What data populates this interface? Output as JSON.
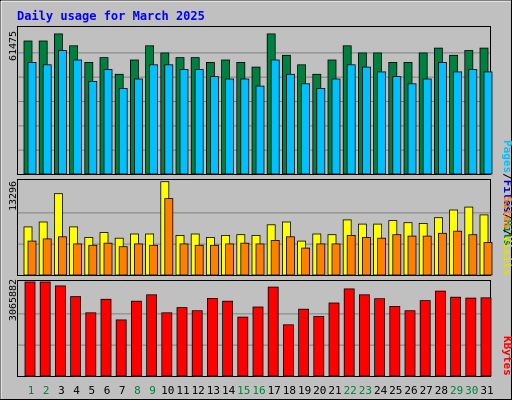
{
  "title": "Daily usage for March 2025",
  "colors": {
    "hits": "#008040",
    "files": "#00c0ff",
    "visits": "#ffff00",
    "sites": "#ff8000",
    "kbytes": "#ff0000",
    "panel_bg": "#c0c0c0",
    "title_text": "#0000ff",
    "weekend_day": "#008040",
    "weekday_day": "#000000"
  },
  "legend": {
    "pages": "Pages",
    "files": "Files",
    "hits": "Hits",
    "sites": "Sites",
    "visits": "Visits",
    "kbytes": "KBytes",
    "sep": "/"
  },
  "axis_max_labels": {
    "top": "61475",
    "middle": "13296",
    "bottom": "3065882"
  },
  "chart_data": {
    "type": "bar",
    "title": "Daily usage for March 2025",
    "categories": [
      "1",
      "2",
      "3",
      "4",
      "5",
      "6",
      "7",
      "8",
      "9",
      "10",
      "11",
      "12",
      "13",
      "14",
      "15",
      "16",
      "17",
      "18",
      "19",
      "20",
      "21",
      "22",
      "23",
      "24",
      "25",
      "26",
      "27",
      "28",
      "29",
      "30",
      "31"
    ],
    "weekend_days": [
      "1",
      "2",
      "8",
      "9",
      "15",
      "16",
      "22",
      "23",
      "29",
      "30"
    ],
    "panels": [
      {
        "name": "top",
        "ymax": 61475,
        "series": [
          {
            "name": "Hits",
            "values": [
              56000,
              56000,
              59000,
              54000,
              47000,
              49000,
              42000,
              48000,
              54000,
              51000,
              49000,
              49000,
              47000,
              48000,
              47000,
              45000,
              59000,
              50000,
              46000,
              42000,
              48000,
              54000,
              51000,
              51000,
              47000,
              47000,
              51000,
              53000,
              50000,
              52000,
              53000
            ]
          },
          {
            "name": "Files",
            "values": [
              47000,
              46000,
              52000,
              48000,
              39000,
              44000,
              36000,
              40000,
              46000,
              46000,
              44000,
              44000,
              41000,
              40000,
              40000,
              37000,
              48000,
              42000,
              38000,
              36000,
              40000,
              46000,
              45000,
              43000,
              41000,
              38000,
              40000,
              47000,
              43000,
              44000,
              43000
            ]
          },
          {
            "name": "Pages",
            "values": [
              47000,
              46000,
              52000,
              48000,
              39000,
              44000,
              36000,
              40000,
              46000,
              46000,
              44000,
              44000,
              41000,
              40000,
              40000,
              37000,
              48000,
              42000,
              38000,
              36000,
              40000,
              46000,
              45000,
              43000,
              41000,
              38000,
              40000,
              47000,
              43000,
              44000,
              43000
            ]
          }
        ]
      },
      {
        "name": "middle",
        "ymax": 13296,
        "series": [
          {
            "name": "Visits",
            "values": [
              6800,
              7500,
              11500,
              6800,
              5300,
              6000,
              5200,
              5800,
              5800,
              13200,
              5600,
              5800,
              5300,
              5600,
              5700,
              5600,
              7100,
              7500,
              4800,
              5800,
              5700,
              7800,
              7200,
              7200,
              7700,
              7400,
              7300,
              8100,
              9200,
              9600,
              8500
            ]
          },
          {
            "name": "Sites",
            "values": [
              4800,
              5100,
              5400,
              4400,
              4200,
              4500,
              4000,
              4400,
              4200,
              10800,
              4400,
              4200,
              4200,
              4400,
              4500,
              4400,
              4900,
              5400,
              3800,
              4400,
              4400,
              5600,
              5300,
              5200,
              5700,
              5500,
              5500,
              5900,
              6200,
              5700,
              4600
            ]
          }
        ]
      },
      {
        "name": "bottom",
        "ymax": 3065882,
        "series": [
          {
            "name": "KBytes",
            "values": [
              3065882,
              3065882,
              2940000,
              2590000,
              2060000,
              2500000,
              1830000,
              2440000,
              2650000,
              2060000,
              2230000,
              2130000,
              2530000,
              2440000,
              1920000,
              2250000,
              2900000,
              1670000,
              2180000,
              1940000,
              2380000,
              2840000,
              2650000,
              2520000,
              2270000,
              2130000,
              2460000,
              2770000,
              2570000,
              2540000,
              2550000
            ]
          }
        ]
      }
    ]
  }
}
